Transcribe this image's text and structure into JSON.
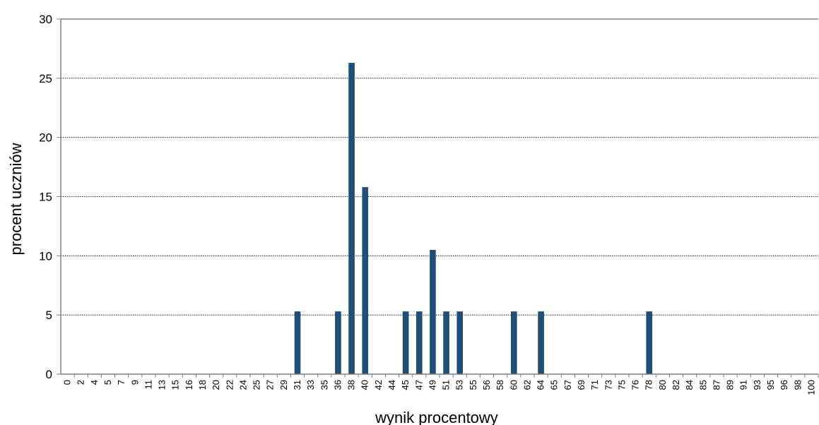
{
  "chart_data": {
    "type": "bar",
    "title": "",
    "xlabel": "wynik procentowy",
    "ylabel": "procent uczniów",
    "ylim": [
      0,
      30
    ],
    "yticks": [
      0,
      5,
      10,
      15,
      20,
      25,
      30
    ],
    "grid": true,
    "bar_color": "#1F4E79",
    "categories": [
      "0",
      "2",
      "4",
      "5",
      "7",
      "9",
      "11",
      "13",
      "15",
      "16",
      "18",
      "20",
      "22",
      "24",
      "25",
      "27",
      "29",
      "31",
      "33",
      "35",
      "36",
      "38",
      "40",
      "42",
      "44",
      "45",
      "47",
      "49",
      "51",
      "53",
      "55",
      "56",
      "58",
      "60",
      "62",
      "64",
      "65",
      "67",
      "69",
      "71",
      "73",
      "75",
      "76",
      "78",
      "80",
      "82",
      "84",
      "85",
      "87",
      "89",
      "91",
      "93",
      "95",
      "96",
      "98",
      "100"
    ],
    "values": [
      0,
      0,
      0,
      0,
      0,
      0,
      0,
      0,
      0,
      0,
      0,
      0,
      0,
      0,
      0,
      0,
      0,
      5.3,
      0,
      0,
      5.3,
      26.3,
      15.8,
      0,
      0,
      5.3,
      5.3,
      10.5,
      5.3,
      5.3,
      0,
      0,
      0,
      5.3,
      0,
      5.3,
      0,
      0,
      0,
      0,
      0,
      0,
      0,
      5.3,
      0,
      0,
      0,
      0,
      0,
      0,
      0,
      0,
      0,
      0,
      0,
      0
    ]
  }
}
